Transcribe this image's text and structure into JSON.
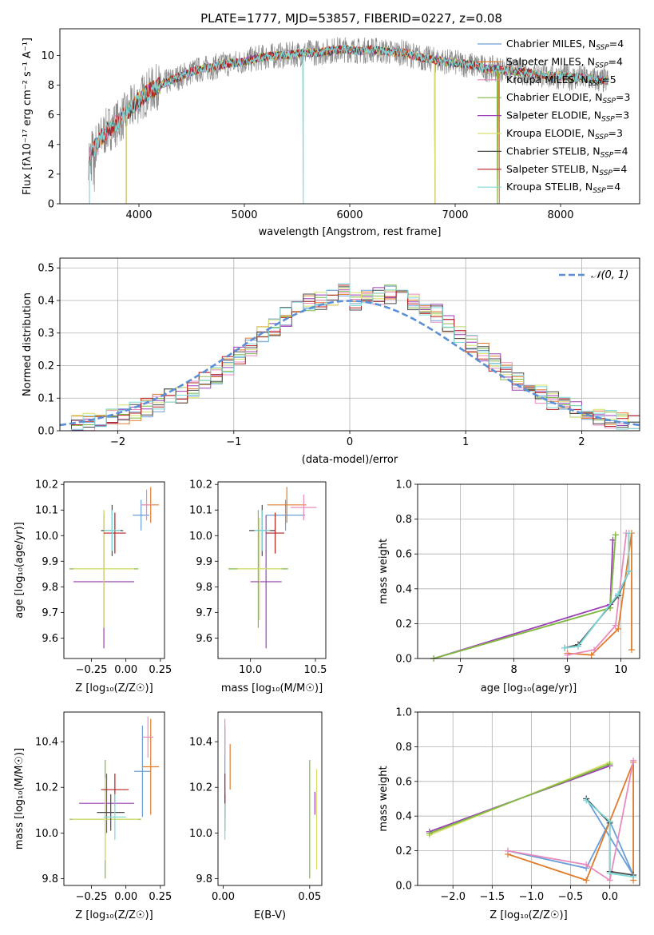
{
  "chart_data": [
    {
      "id": "spectrum",
      "type": "line",
      "title": "PLATE=1777, MJD=53857, FIBERID=0227, z=0.08",
      "xlabel": "wavelength [Angstrom, rest frame]",
      "ylabel": "Flux [fλ10⁻¹⁷ erg cm⁻² s⁻¹ A⁻¹]",
      "xlim": [
        3250,
        8750
      ],
      "ylim": [
        0,
        11.8
      ],
      "xticks": [
        4000,
        5000,
        6000,
        7000,
        8000
      ],
      "yticks": [
        0,
        2,
        4,
        6,
        8,
        10
      ],
      "grid": false,
      "legend_position": "right",
      "observed_spectrum": {
        "x": [
          3520,
          3600,
          3700,
          3800,
          3900,
          4000,
          4100,
          4200,
          4300,
          4400,
          4500,
          4600,
          4700,
          4800,
          4900,
          5000,
          5100,
          5200,
          5300,
          5400,
          5500,
          5600,
          5700,
          5800,
          5900,
          6000,
          6100,
          6200,
          6300,
          6400,
          6500,
          6600,
          6700,
          6800,
          6900,
          7000,
          7100,
          7200,
          7300,
          7400,
          7500,
          7600,
          7700,
          7800,
          7900,
          8000,
          8100,
          8200,
          8300,
          8400
        ],
        "y": [
          3.2,
          4.0,
          5.0,
          5.5,
          6.2,
          7.0,
          7.6,
          8.0,
          8.3,
          8.6,
          8.9,
          9.1,
          9.2,
          9.4,
          9.5,
          9.6,
          9.8,
          9.9,
          10.0,
          10.0,
          10.1,
          10.2,
          10.2,
          10.3,
          10.4,
          10.4,
          10.3,
          10.4,
          10.3,
          10.2,
          10.2,
          10.0,
          9.8,
          9.7,
          9.6,
          9.5,
          9.4,
          9.3,
          9.1,
          9.1,
          9.0,
          8.9,
          8.8,
          8.7,
          8.6,
          8.6,
          8.5,
          8.5,
          8.4,
          8.3
        ]
      },
      "series": [
        {
          "name": "Chabrier MILES, N_SSP=4",
          "label_main": "Chabrier MILES, N",
          "label_sub": "SSP",
          "label_tail": "=4",
          "color": "#6a9fd8",
          "start": 3530,
          "drop_at": null
        },
        {
          "name": "Salpeter MILES, N_SSP=4",
          "label_main": "Salpeter MILES, N",
          "label_sub": "SSP",
          "label_tail": "=4",
          "color": "#e07b2a",
          "start": 3530,
          "drop_at": 7420
        },
        {
          "name": "Kroupa MILES, N_SSP=5",
          "label_main": "Kroupa MILES, N",
          "label_sub": "SSP",
          "label_tail": "=5",
          "color": "#e88bbd",
          "start": 3530,
          "drop_at": null
        },
        {
          "name": "Chabrier ELODIE, N_SSP=3",
          "label_main": "Chabrier ELODIE, N",
          "label_sub": "SSP",
          "label_tail": "=3",
          "color": "#7fb845",
          "start": 3880,
          "drop_at": 7400
        },
        {
          "name": "Salpeter ELODIE, N_SSP=3",
          "label_main": "Salpeter ELODIE, N",
          "label_sub": "SSP",
          "label_tail": "=3",
          "color": "#9b3fb5",
          "start": 3880,
          "drop_at": 6810
        },
        {
          "name": "Kroupa ELODIE, N_SSP=3",
          "label_main": "Kroupa ELODIE, N",
          "label_sub": "SSP",
          "label_tail": "=3",
          "color": "#d8e06a",
          "start": 3880,
          "drop_at": 6810
        },
        {
          "name": "Chabrier STELIB, N_SSP=4",
          "label_main": "Chabrier STELIB, N",
          "label_sub": "SSP",
          "label_tail": "=4",
          "color": "#4a4a4a",
          "start": 3530,
          "drop_at": null
        },
        {
          "name": "Salpeter STELIB, N_SSP=4",
          "label_main": "Salpeter STELIB, N",
          "label_sub": "SSP",
          "label_tail": "=4",
          "color": "#b52020",
          "start": 3530,
          "drop_at": null
        },
        {
          "name": "Kroupa STELIB, N_SSP=4",
          "label_main": "Kroupa STELIB, N",
          "label_sub": "SSP",
          "label_tail": "=4",
          "color": "#7fd8d8",
          "start": 3530,
          "drop_at": 5560
        }
      ]
    },
    {
      "id": "residuals",
      "type": "line",
      "xlabel": "(data-model)/error",
      "ylabel": "Normed distribution",
      "xlim": [
        -2.5,
        2.5
      ],
      "ylim": [
        0,
        0.53
      ],
      "xticks": [
        -2,
        -1,
        0,
        1,
        2
      ],
      "yticks": [
        0.0,
        0.1,
        0.2,
        0.3,
        0.4,
        0.5
      ],
      "grid": true,
      "legend_position": "top-right",
      "reference_curve": {
        "name": "𝒩(0, 1)",
        "type": "normal",
        "mean": 0,
        "sigma": 1,
        "color": "#5b8fd6",
        "style": "dashed"
      },
      "histogram_bin_width": 0.1,
      "histogram_centers": [
        -2.45,
        -2.35,
        -2.25,
        -2.15,
        -2.05,
        -1.95,
        -1.85,
        -1.75,
        -1.65,
        -1.55,
        -1.45,
        -1.35,
        -1.25,
        -1.15,
        -1.05,
        -0.95,
        -0.85,
        -0.75,
        -0.65,
        -0.55,
        -0.45,
        -0.35,
        -0.25,
        -0.15,
        -0.05,
        0.05,
        0.15,
        0.25,
        0.35,
        0.45,
        0.55,
        0.65,
        0.75,
        0.85,
        0.95,
        1.05,
        1.15,
        1.25,
        1.35,
        1.45,
        1.55,
        1.65,
        1.75,
        1.85,
        1.95,
        2.05,
        2.15,
        2.25,
        2.35,
        2.45
      ],
      "histogram_base": [
        0.02,
        0.025,
        0.03,
        0.035,
        0.04,
        0.05,
        0.06,
        0.07,
        0.085,
        0.1,
        0.11,
        0.13,
        0.15,
        0.17,
        0.2,
        0.23,
        0.26,
        0.29,
        0.32,
        0.35,
        0.37,
        0.39,
        0.4,
        0.41,
        0.43,
        0.4,
        0.41,
        0.41,
        0.42,
        0.41,
        0.4,
        0.38,
        0.36,
        0.33,
        0.3,
        0.27,
        0.24,
        0.21,
        0.18,
        0.15,
        0.13,
        0.11,
        0.09,
        0.075,
        0.06,
        0.05,
        0.04,
        0.035,
        0.03,
        0.025
      ]
    },
    {
      "id": "age-vs-Z",
      "type": "scatter",
      "xlabel": "Z [log₁₀(Z/Z☉)]",
      "ylabel": "age [log₁₀(age/yr)]",
      "xlim": [
        -0.45,
        0.28
      ],
      "ylim": [
        9.52,
        10.21
      ],
      "xticks": [
        -0.25,
        0.0,
        0.25
      ],
      "yticks": [
        9.6,
        9.7,
        9.8,
        9.9,
        10.0,
        10.1,
        10.2
      ],
      "grid": false,
      "points": [
        {
          "x": 0.11,
          "y": 10.08,
          "xerr": 0.06,
          "yerr": 0.06,
          "color": "#6a9fd8"
        },
        {
          "x": 0.18,
          "y": 10.12,
          "xerr": 0.06,
          "yerr": 0.07,
          "color": "#e07b2a"
        },
        {
          "x": 0.15,
          "y": 10.12,
          "xerr": 0.04,
          "yerr": 0.06,
          "color": "#e88bbd"
        },
        {
          "x": -0.16,
          "y": 9.87,
          "xerr": 0.25,
          "yerr": 0.23,
          "color": "#7fb845"
        },
        {
          "x": -0.16,
          "y": 9.82,
          "xerr": 0.22,
          "yerr": 0.26,
          "color": "#9b3fb5"
        },
        {
          "x": -0.16,
          "y": 9.87,
          "xerr": 0.22,
          "yerr": 0.23,
          "color": "#d8e06a"
        },
        {
          "x": -0.1,
          "y": 10.02,
          "xerr": 0.08,
          "yerr": 0.1,
          "color": "#4a4a4a"
        },
        {
          "x": -0.08,
          "y": 10.01,
          "xerr": 0.08,
          "yerr": 0.08,
          "color": "#b52020"
        },
        {
          "x": -0.1,
          "y": 10.02,
          "xerr": 0.06,
          "yerr": 0.08,
          "color": "#7fd8d8"
        }
      ]
    },
    {
      "id": "age-vs-mass",
      "type": "scatter",
      "xlabel": "mass [log₁₀(M/M☉)]",
      "ylabel": "",
      "xlim": [
        9.75,
        10.58
      ],
      "ylim": [
        9.52,
        10.21
      ],
      "xticks": [
        10.0,
        10.5
      ],
      "yticks": [
        9.6,
        9.7,
        9.8,
        9.9,
        10.0,
        10.1,
        10.2
      ],
      "grid": false,
      "points": [
        {
          "x": 10.27,
          "y": 10.08,
          "xerr": 0.15,
          "yerr": 0.06,
          "color": "#6a9fd8"
        },
        {
          "x": 10.28,
          "y": 10.12,
          "xerr": 0.15,
          "yerr": 0.07,
          "color": "#e07b2a"
        },
        {
          "x": 10.41,
          "y": 10.11,
          "xerr": 0.1,
          "yerr": 0.05,
          "color": "#e88bbd"
        },
        {
          "x": 10.06,
          "y": 9.87,
          "xerr": 0.23,
          "yerr": 0.23,
          "color": "#7fb845"
        },
        {
          "x": 10.12,
          "y": 9.82,
          "xerr": 0.12,
          "yerr": 0.26,
          "color": "#9b3fb5"
        },
        {
          "x": 10.07,
          "y": 9.87,
          "xerr": 0.17,
          "yerr": 0.2,
          "color": "#d8e06a"
        },
        {
          "x": 10.09,
          "y": 10.02,
          "xerr": 0.1,
          "yerr": 0.1,
          "color": "#4a4a4a"
        },
        {
          "x": 10.19,
          "y": 10.01,
          "xerr": 0.07,
          "yerr": 0.08,
          "color": "#b52020"
        },
        {
          "x": 10.09,
          "y": 10.02,
          "xerr": 0.06,
          "yerr": 0.08,
          "color": "#7fd8d8"
        }
      ]
    },
    {
      "id": "mass-weight-vs-age",
      "type": "line",
      "xlabel": "age [log₁₀(age/yr)]",
      "ylabel": "mass weight",
      "xlim": [
        6.2,
        10.35
      ],
      "ylim": [
        0,
        1
      ],
      "xticks": [
        7,
        8,
        9,
        10
      ],
      "yticks": [
        0.0,
        0.2,
        0.4,
        0.6,
        0.8,
        1.0
      ],
      "grid": true,
      "series": [
        {
          "color": "#6a9fd8",
          "points": [
            [
              8.95,
              0.06
            ],
            [
              9.2,
              0.07
            ],
            [
              9.95,
              0.37
            ],
            [
              10.15,
              0.5
            ]
          ]
        },
        {
          "color": "#e07b2a",
          "points": [
            [
              9.0,
              0.03
            ],
            [
              9.45,
              0.02
            ],
            [
              9.95,
              0.17
            ],
            [
              10.2,
              0.72
            ],
            [
              10.2,
              0.05
            ]
          ]
        },
        {
          "color": "#e88bbd",
          "points": [
            [
              9.0,
              0.02
            ],
            [
              9.5,
              0.05
            ],
            [
              9.9,
              0.19
            ],
            [
              10.1,
              0.72
            ]
          ]
        },
        {
          "color": "#9b3fb5",
          "points": [
            [
              6.5,
              0.0
            ],
            [
              9.8,
              0.31
            ],
            [
              9.85,
              0.68
            ]
          ]
        },
        {
          "color": "#d8e06a",
          "points": [
            [
              6.5,
              0.0
            ],
            [
              9.8,
              0.29
            ],
            [
              9.9,
              0.71
            ]
          ]
        },
        {
          "color": "#7fb845",
          "points": [
            [
              6.5,
              0.0
            ],
            [
              9.8,
              0.29
            ],
            [
              9.9,
              0.71
            ]
          ]
        },
        {
          "color": "#4a4a4a",
          "points": [
            [
              8.95,
              0.06
            ],
            [
              9.2,
              0.08
            ],
            [
              9.95,
              0.36
            ],
            [
              10.15,
              0.5
            ],
            [
              10.15,
              0.72
            ]
          ]
        },
        {
          "color": "#7fd8d8",
          "points": [
            [
              8.95,
              0.06
            ],
            [
              9.2,
              0.07
            ],
            [
              9.95,
              0.37
            ],
            [
              10.15,
              0.5
            ],
            [
              10.15,
              0.72
            ]
          ]
        }
      ]
    },
    {
      "id": "mass-vs-Z",
      "type": "scatter",
      "xlabel": "Z [log₁₀(Z/Z☉)]",
      "ylabel": "mass [log₁₀(M/M☉)]",
      "xlim": [
        -0.45,
        0.28
      ],
      "ylim": [
        9.77,
        10.53
      ],
      "xticks": [
        -0.25,
        0.0,
        0.25
      ],
      "yticks": [
        9.8,
        10.0,
        10.2,
        10.4
      ],
      "grid": false,
      "points": [
        {
          "x": 0.12,
          "y": 10.27,
          "xerr": 0.06,
          "yerr": 0.2,
          "color": "#6a9fd8"
        },
        {
          "x": 0.18,
          "y": 10.29,
          "xerr": 0.06,
          "yerr": 0.21,
          "color": "#e07b2a"
        },
        {
          "x": 0.16,
          "y": 10.42,
          "xerr": 0.04,
          "yerr": 0.09,
          "color": "#e88bbd"
        },
        {
          "x": -0.15,
          "y": 10.06,
          "xerr": 0.26,
          "yerr": 0.26,
          "color": "#7fb845"
        },
        {
          "x": -0.14,
          "y": 10.13,
          "xerr": 0.2,
          "yerr": 0.13,
          "color": "#9b3fb5"
        },
        {
          "x": -0.15,
          "y": 10.06,
          "xerr": 0.24,
          "yerr": 0.18,
          "color": "#d8e06a"
        },
        {
          "x": -0.11,
          "y": 10.09,
          "xerr": 0.1,
          "yerr": 0.08,
          "color": "#4a4a4a"
        },
        {
          "x": -0.08,
          "y": 10.19,
          "xerr": 0.1,
          "yerr": 0.07,
          "color": "#b52020"
        },
        {
          "x": -0.08,
          "y": 10.07,
          "xerr": 0.08,
          "yerr": 0.1,
          "color": "#7fd8d8"
        }
      ]
    },
    {
      "id": "mass-vs-EBV",
      "type": "scatter",
      "xlabel": "E(B-V)",
      "ylabel": "",
      "xlim": [
        -0.003,
        0.057
      ],
      "ylim": [
        9.77,
        10.53
      ],
      "xticks": [
        0.0,
        0.05
      ],
      "yticks": [
        9.8,
        10.0,
        10.2,
        10.4
      ],
      "grid": false,
      "points": [
        {
          "x": 0.001,
          "y": 10.27,
          "xerr": 0,
          "yerr": 0.2,
          "color": "#6a9fd8"
        },
        {
          "x": 0.004,
          "y": 10.29,
          "xerr": 0,
          "yerr": 0.1,
          "color": "#e07b2a"
        },
        {
          "x": 0.001,
          "y": 10.42,
          "xerr": 0,
          "yerr": 0.08,
          "color": "#e88bbd"
        },
        {
          "x": 0.05,
          "y": 10.06,
          "xerr": 0,
          "yerr": 0.26,
          "color": "#7fb845"
        },
        {
          "x": 0.053,
          "y": 10.13,
          "xerr": 0,
          "yerr": 0.05,
          "color": "#9b3fb5"
        },
        {
          "x": 0.054,
          "y": 10.06,
          "xerr": 0,
          "yerr": 0.22,
          "color": "#d8e06a"
        },
        {
          "x": 0.001,
          "y": 10.09,
          "xerr": 0,
          "yerr": 0.08,
          "color": "#4a4a4a"
        },
        {
          "x": 0.001,
          "y": 10.19,
          "xerr": 0,
          "yerr": 0.07,
          "color": "#b52020"
        },
        {
          "x": 0.001,
          "y": 10.05,
          "xerr": 0,
          "yerr": 0.08,
          "color": "#7fd8d8"
        }
      ]
    },
    {
      "id": "mass-weight-vs-Z",
      "type": "line",
      "xlabel": "Z [log₁₀(Z/Z☉)]",
      "ylabel": "mass weight",
      "xlim": [
        -2.45,
        0.38
      ],
      "ylim": [
        0,
        1
      ],
      "xticks": [
        -2.0,
        -1.5,
        -1.0,
        -0.5,
        0.0
      ],
      "yticks": [
        0.0,
        0.2,
        0.4,
        0.6,
        0.8,
        1.0
      ],
      "grid": true,
      "series": [
        {
          "color": "#6a9fd8",
          "points": [
            [
              -1.3,
              0.2
            ],
            [
              -0.3,
              0.1
            ],
            [
              0.0,
              0.37
            ],
            [
              0.3,
              0.06
            ],
            [
              -0.3,
              0.5
            ]
          ]
        },
        {
          "color": "#e07b2a",
          "points": [
            [
              -1.3,
              0.18
            ],
            [
              -0.3,
              0.03
            ],
            [
              0.3,
              0.71
            ],
            [
              0.3,
              0.03
            ]
          ]
        },
        {
          "color": "#e88bbd",
          "points": [
            [
              -1.3,
              0.2
            ],
            [
              -0.3,
              0.12
            ],
            [
              0.0,
              0.03
            ],
            [
              0.3,
              0.72
            ]
          ]
        },
        {
          "color": "#9b3fb5",
          "points": [
            [
              -2.3,
              0.31
            ],
            [
              0.0,
              0.69
            ]
          ]
        },
        {
          "color": "#d8e06a",
          "points": [
            [
              -2.3,
              0.29
            ],
            [
              0.0,
              0.71
            ]
          ]
        },
        {
          "color": "#7fb845",
          "points": [
            [
              -2.3,
              0.3
            ],
            [
              0.0,
              0.7
            ]
          ]
        },
        {
          "color": "#4a4a4a",
          "points": [
            [
              -0.3,
              0.5
            ],
            [
              0.0,
              0.36
            ],
            [
              0.0,
              0.08
            ],
            [
              0.3,
              0.06
            ]
          ]
        },
        {
          "color": "#7fd8d8",
          "points": [
            [
              -0.3,
              0.49
            ],
            [
              0.0,
              0.37
            ],
            [
              0.0,
              0.07
            ],
            [
              0.3,
              0.05
            ]
          ]
        }
      ]
    }
  ]
}
